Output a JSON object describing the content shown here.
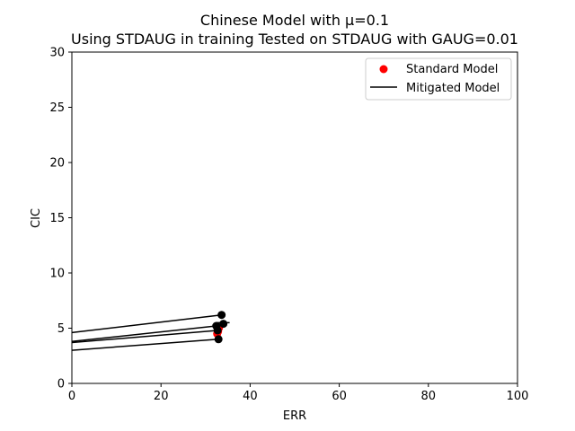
{
  "chart_data": {
    "type": "scatter",
    "title": "Chinese Model with μ=0.1",
    "subtitle": "Using STDAUG in training Tested on STDAUG with GAUG=0.01",
    "xlabel": "ERR",
    "ylabel": "CIC",
    "xlim": [
      0,
      100
    ],
    "ylim": [
      0,
      30
    ],
    "xticks": [
      "0",
      "20",
      "40",
      "60",
      "80",
      "100"
    ],
    "yticks": [
      "0",
      "5",
      "10",
      "15",
      "20",
      "25",
      "30"
    ],
    "grid": false,
    "legend_position": "upper right",
    "series": [
      {
        "name": "Standard Model",
        "kind": "scatter",
        "color": "#ff0000",
        "points": [
          {
            "x": 32.6,
            "y": 4.5
          },
          {
            "x": 32.8,
            "y": 4.7
          },
          {
            "x": 33.0,
            "y": 5.0
          }
        ]
      },
      {
        "name": "Mitigated Model",
        "kind": "line",
        "color": "#000000",
        "lines": [
          {
            "x": [
              0,
              33.6
            ],
            "y": [
              4.6,
              6.2
            ]
          },
          {
            "x": [
              0,
              32.4
            ],
            "y": [
              3.8,
              5.2
            ]
          },
          {
            "x": [
              0,
              32.7
            ],
            "y": [
              3.7,
              4.8
            ]
          },
          {
            "x": [
              0,
              32.9
            ],
            "y": [
              3.0,
              4.0
            ]
          },
          {
            "x": [
              32.4,
              35.4
            ],
            "y": [
              5.5,
              5.5
            ]
          }
        ],
        "endpoints": [
          {
            "x": 33.6,
            "y": 6.2
          },
          {
            "x": 34.0,
            "y": 5.4
          },
          {
            "x": 32.4,
            "y": 5.2
          },
          {
            "x": 32.7,
            "y": 4.8
          },
          {
            "x": 32.9,
            "y": 4.0
          }
        ]
      }
    ]
  }
}
